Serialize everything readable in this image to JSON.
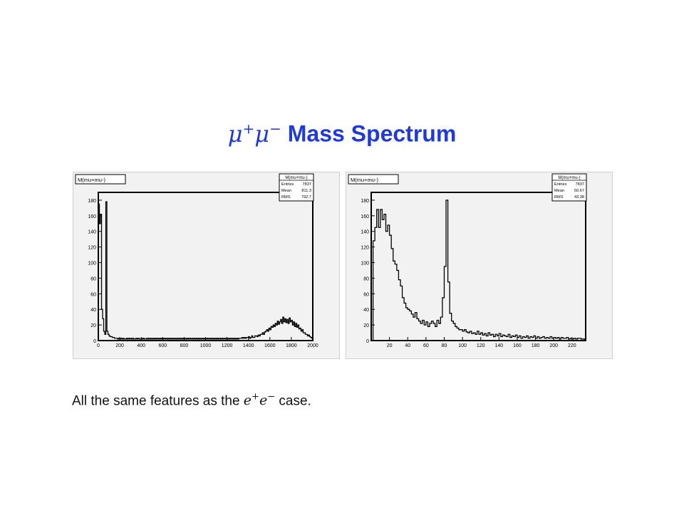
{
  "slide": {
    "title_mu1": "μ",
    "title_plus": "+",
    "title_mu2": "μ",
    "title_minus": "−",
    "title_text": "Mass Spectrum",
    "caption_prefix": "All the same features as the ",
    "caption_e1": "e",
    "caption_plus": "+",
    "caption_e2": "e",
    "caption_minus": "−",
    "caption_suffix": " case."
  },
  "colors": {
    "title": "#1f3ad6",
    "frame_bg": "#f2f2f2",
    "line": "#000000"
  },
  "chart_data": [
    {
      "type": "histogram",
      "title": "M(mu+mu-)",
      "stats": {
        "title": "M(mu+mu-)",
        "rows": [
          {
            "label": "Entries",
            "value": "7837"
          },
          {
            "label": "Mean",
            "value": "811.3"
          },
          {
            "label": "RMS",
            "value": "792.7"
          }
        ]
      },
      "xlim": [
        0,
        2000
      ],
      "ylim": [
        0,
        190
      ],
      "xticks": [
        0,
        200,
        400,
        600,
        800,
        1000,
        1200,
        1400,
        1600,
        1800,
        2000
      ],
      "yticks": [
        0,
        20,
        40,
        60,
        80,
        100,
        120,
        140,
        160,
        180
      ],
      "bin_width": 10,
      "values": [
        175,
        150,
        162,
        40,
        28,
        12,
        8,
        178,
        12,
        8,
        6,
        5,
        5,
        4,
        4,
        3,
        3,
        3,
        2,
        3,
        2,
        3,
        2,
        3,
        2,
        2,
        3,
        2,
        3,
        2,
        3,
        2,
        3,
        2,
        2,
        3,
        2,
        3,
        2,
        2,
        3,
        2,
        3,
        2,
        2,
        3,
        2,
        3,
        2,
        3,
        2,
        3,
        2,
        3,
        2,
        3,
        2,
        3,
        2,
        3,
        2,
        3,
        2,
        3,
        2,
        3,
        2,
        3,
        2,
        3,
        2,
        3,
        2,
        3,
        2,
        3,
        2,
        3,
        2,
        3,
        2,
        3,
        2,
        3,
        2,
        3,
        2,
        3,
        2,
        3,
        2,
        3,
        2,
        3,
        2,
        3,
        2,
        3,
        2,
        3,
        2,
        3,
        2,
        3,
        2,
        3,
        2,
        3,
        2,
        3,
        2,
        3,
        2,
        3,
        2,
        3,
        2,
        3,
        2,
        3,
        2,
        3,
        2,
        3,
        2,
        3,
        2,
        3,
        2,
        3,
        2,
        3,
        3,
        3,
        4,
        3,
        4,
        3,
        4,
        4,
        5,
        3,
        4,
        6,
        4,
        4,
        6,
        6,
        5,
        7,
        6,
        8,
        8,
        10,
        8,
        11,
        12,
        14,
        12,
        16,
        14,
        18,
        17,
        20,
        18,
        22,
        20,
        25,
        21,
        24,
        27,
        22,
        30,
        24,
        28,
        23,
        27,
        22,
        29,
        24,
        26,
        20,
        24,
        18,
        22,
        17,
        20,
        15,
        16,
        12,
        14,
        10,
        10,
        8,
        8,
        6,
        7,
        5,
        4,
        3
      ]
    },
    {
      "type": "histogram",
      "title": "M(mu+mu-)",
      "stats": {
        "title": "M(mu+mu-)",
        "rows": [
          {
            "label": "Entries",
            "value": "7837"
          },
          {
            "label": "Mean",
            "value": "50.67"
          },
          {
            "label": "RMS",
            "value": "43.38"
          }
        ]
      },
      "xlim": [
        0,
        235
      ],
      "ylim": [
        0,
        190
      ],
      "xticks": [
        20,
        40,
        60,
        80,
        100,
        120,
        140,
        160,
        180,
        200,
        220
      ],
      "yticks": [
        0,
        20,
        40,
        60,
        80,
        100,
        120,
        140,
        160,
        180
      ],
      "bin_width": 2,
      "x_start": 2,
      "values": [
        128,
        145,
        168,
        145,
        168,
        155,
        162,
        140,
        148,
        135,
        118,
        102,
        98,
        90,
        78,
        70,
        55,
        48,
        42,
        40,
        38,
        34,
        30,
        36,
        28,
        25,
        22,
        26,
        20,
        24,
        18,
        22,
        25,
        22,
        18,
        26,
        22,
        30,
        55,
        95,
        180,
        75,
        35,
        25,
        22,
        18,
        16,
        14,
        14,
        12,
        14,
        11,
        10,
        12,
        9,
        10,
        8,
        12,
        8,
        10,
        7,
        9,
        6,
        10,
        7,
        8,
        5,
        8,
        6,
        9,
        5,
        7,
        6,
        5,
        8,
        4,
        6,
        5,
        7,
        4,
        6,
        3,
        5,
        4,
        6,
        3,
        5,
        4,
        6,
        3,
        5,
        3,
        4,
        5,
        3,
        4,
        3,
        5,
        3,
        4,
        3,
        4,
        2,
        4,
        3,
        3,
        4,
        2,
        3,
        2,
        3,
        2,
        3,
        3,
        2,
        2
      ]
    }
  ]
}
